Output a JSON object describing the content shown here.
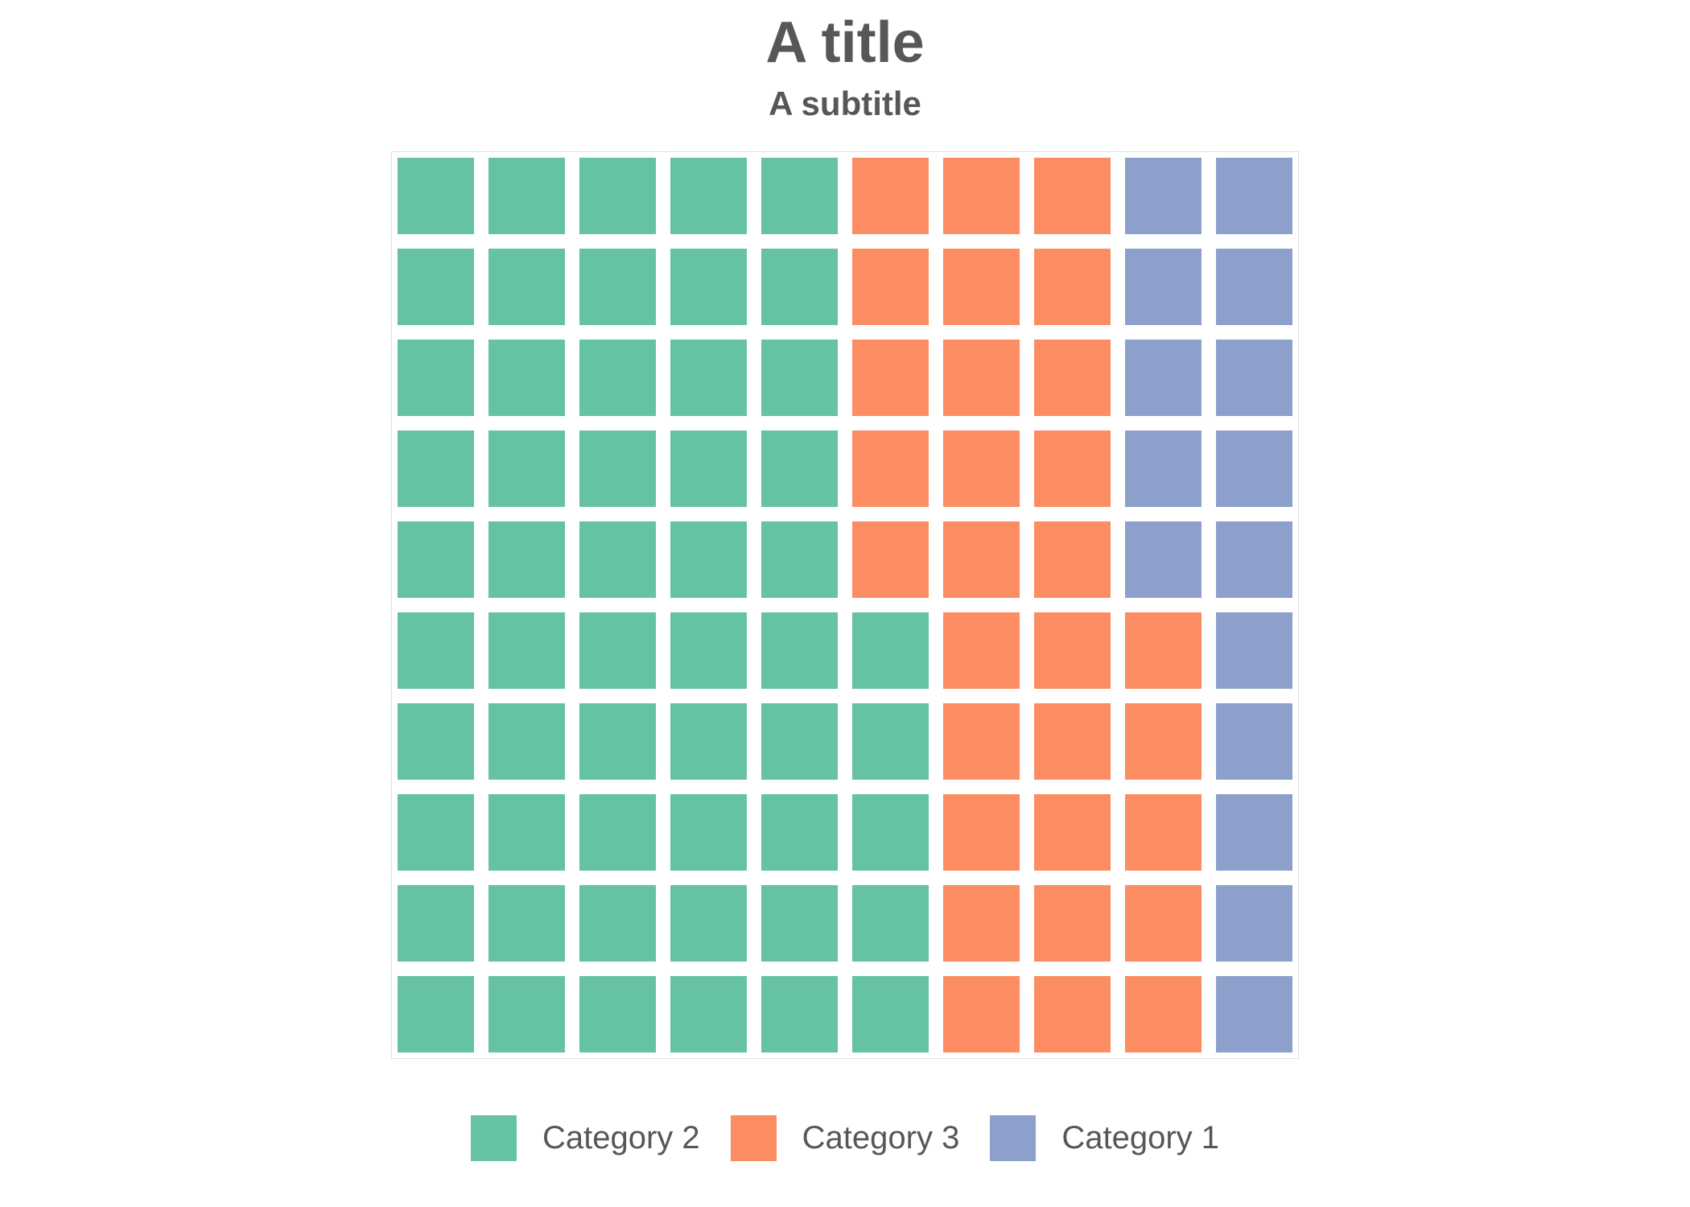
{
  "page": {
    "background_color": "#ffffff",
    "text_color": "#555759",
    "plot_border_color": "#dbe3e0"
  },
  "chart_data": {
    "type": "waffle",
    "title": "A title",
    "subtitle": "A subtitle",
    "rows": 10,
    "columns": 10,
    "total_cells": 100,
    "cell_unit_percent": 1,
    "fill_order": "column-major, bottom-to-top, left-to-right",
    "grid_gap_color": "#ffffff",
    "legend_position": "bottom",
    "series": [
      {
        "name": "Category 2",
        "value": 55,
        "color": "#66c2a5"
      },
      {
        "name": "Category 3",
        "value": 30,
        "color": "#fc8d62"
      },
      {
        "name": "Category 1",
        "value": 15,
        "color": "#8da0cb"
      }
    ]
  }
}
